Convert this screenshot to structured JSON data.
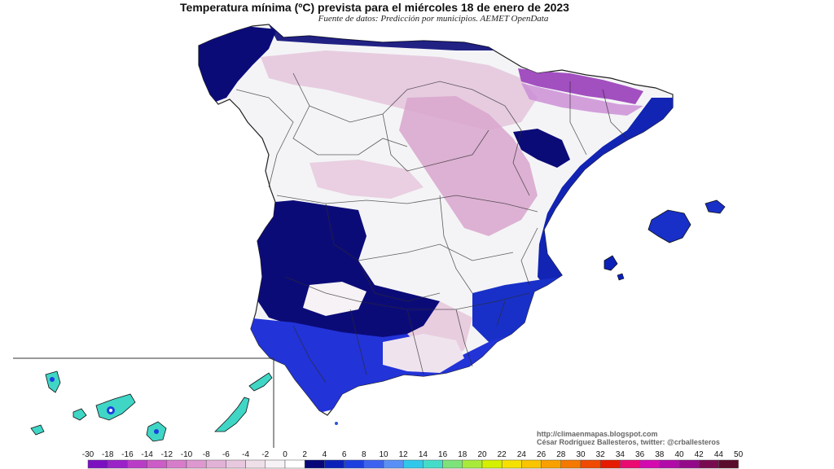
{
  "header": {
    "title": "Temperatura mínima (ºC) prevista para el miércoles 18 de enero de 2023",
    "subtitle": "Fuente de datos: Predicción por municipios. AEMET OpenData"
  },
  "credits": {
    "url": "http://climaenmapas.blogspot.com",
    "author": "César Rodríguez Ballesteros, twitter: @crballesteros"
  },
  "legend": {
    "ticks": [
      "-30",
      "-18",
      "-16",
      "-14",
      "-12",
      "-10",
      "-8",
      "-6",
      "-4",
      "-2",
      "0",
      "2",
      "4",
      "6",
      "8",
      "10",
      "12",
      "14",
      "16",
      "18",
      "20",
      "22",
      "24",
      "26",
      "28",
      "30",
      "32",
      "34",
      "36",
      "38",
      "40",
      "42",
      "44",
      "50"
    ],
    "colors": [
      "#7b10c0",
      "#9a22c8",
      "#b93cc6",
      "#cc5cc6",
      "#d77cca",
      "#dd98cf",
      "#e2b2d6",
      "#e8c8de",
      "#efdfe9",
      "#f6f2f5",
      "#ffffff",
      "#07077a",
      "#0b20b8",
      "#1d3fe0",
      "#3c63f0",
      "#5a90f5",
      "#30c8ea",
      "#44dcc8",
      "#7ee27a",
      "#a8ea3a",
      "#d4f000",
      "#f6e000",
      "#fac400",
      "#f8a000",
      "#f57800",
      "#ef4a00",
      "#e51a00",
      "#ea0a70",
      "#d40ab0",
      "#b20aa8",
      "#94088a",
      "#780a50",
      "#5a0a2a"
    ]
  },
  "colors": {
    "cold_blue_dark": "#0b0b78",
    "blue_medium": "#2233d8",
    "cyan_canarias": "#3fd6c6",
    "pink_interior": "#d9a9d0",
    "purple_pyrenees": "#a24fc0",
    "land_white": "#f4f4f6"
  }
}
